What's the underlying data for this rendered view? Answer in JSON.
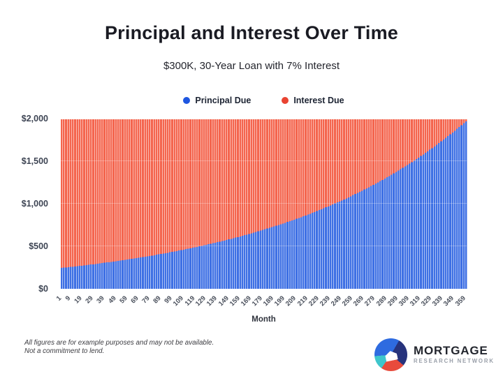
{
  "page": {
    "title": "Principal and Interest Over Time",
    "subtitle": "$300K, 30-Year Loan with 7% Interest"
  },
  "legend": {
    "items": [
      {
        "label": "Principal Due",
        "dot_color": "#1E56E0"
      },
      {
        "label": "Interest Due",
        "dot_color": "#E94331"
      }
    ]
  },
  "chart_data": {
    "type": "bar",
    "stacked": true,
    "title": "Principal and Interest Over Time",
    "subtitle": "$300K, 30-Year Loan with 7% Interest",
    "xlabel": "Month",
    "ylabel": "",
    "ylim": [
      0,
      2000
    ],
    "ytick_labels": [
      "$0",
      "$500",
      "$1,000",
      "$1,500",
      "$2,000"
    ],
    "x_tick_labels": [
      "1",
      "9",
      "19",
      "29",
      "39",
      "49",
      "59",
      "69",
      "79",
      "89",
      "99",
      "109",
      "119",
      "129",
      "139",
      "149",
      "159",
      "169",
      "179",
      "189",
      "199",
      "209",
      "219",
      "229",
      "239",
      "249",
      "259",
      "269",
      "279",
      "289",
      "299",
      "309",
      "319",
      "329",
      "339",
      "349",
      "359"
    ],
    "legend_position": "top",
    "grid": "horizontal-faint",
    "loan": {
      "amount_usd": 300000,
      "term_years": 30,
      "rate_pct": 7
    },
    "monthly_payment": 1995.91,
    "model": {
      "description": "stacked bar per month, months 1..359 step 2; principal(m) = principal_month1 * monthly_growth_factor^(m-1); interest(m) = monthly_payment - principal(m)",
      "first_month": 1,
      "last_month": 359,
      "month_step": 2,
      "principal_month1": 245.91,
      "monthly_growth_factor": 1.00583333
    },
    "x_sampled": [
      1,
      9,
      19,
      29,
      39,
      49,
      59,
      69,
      79,
      89,
      99,
      109,
      119,
      129,
      139,
      149,
      159,
      169,
      179,
      189,
      199,
      209,
      219,
      229,
      239,
      249,
      259,
      269,
      279,
      289,
      299,
      309,
      319,
      329,
      339,
      349,
      359
    ],
    "series": [
      {
        "name": "Principal Due",
        "color": "#3E70E4",
        "values": [
          245.91,
          257.62,
          273.05,
          289.4,
          306.73,
          325.1,
          344.57,
          365.21,
          387.09,
          410.27,
          434.85,
          460.89,
          488.49,
          517.75,
          548.76,
          581.62,
          616.45,
          653.37,
          692.5,
          733.98,
          777.93,
          824.52,
          873.9,
          926.24,
          981.71,
          1040.51,
          1102.82,
          1168.87,
          1238.87,
          1313.06,
          1391.7,
          1475.04,
          1563.38,
          1657.01,
          1756.25,
          1861.43,
          1972.9
        ]
      },
      {
        "name": "Interest Due",
        "color": "#F4654E",
        "values": [
          1750.0,
          1738.29,
          1722.86,
          1706.51,
          1689.18,
          1670.81,
          1651.34,
          1630.7,
          1608.82,
          1585.64,
          1561.06,
          1535.02,
          1507.42,
          1478.16,
          1447.15,
          1414.29,
          1379.46,
          1342.54,
          1303.41,
          1261.93,
          1217.98,
          1171.39,
          1122.01,
          1069.67,
          1014.2,
          955.4,
          893.09,
          827.04,
          757.04,
          682.85,
          604.21,
          520.87,
          432.53,
          338.9,
          239.66,
          134.48,
          23.01
        ]
      }
    ]
  },
  "footer": {
    "disclaimer_line1": "All figures are for example purposes and may not be available.",
    "disclaimer_line2": "Not a commitment to lend.",
    "brand_name": "MORTGAGE",
    "brand_subtitle": "RESEARCH NETWORK",
    "logo_colors": {
      "blue": "#2E6BE0",
      "navy": "#27337C",
      "teal": "#3EC6CC",
      "red": "#E84B3C"
    }
  }
}
